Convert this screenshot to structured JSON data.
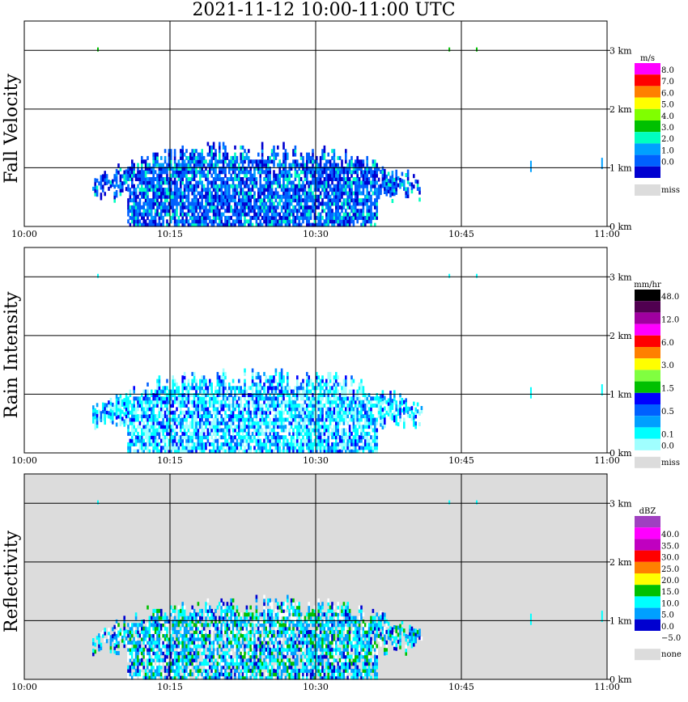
{
  "title": "2021-11-12   10:00-11:00 UTC",
  "x_ticks": [
    "10:00",
    "10:15",
    "10:30",
    "10:45",
    "11:00"
  ],
  "y_ticks": [
    "0 km",
    "1 km",
    "2 km",
    "3 km"
  ],
  "colors": {
    "missing": "#dcdcdc",
    "grid": "#000000"
  },
  "chart_data": [
    {
      "type": "heatmap",
      "name": "fall_velocity",
      "ylabel": "Fall Velocity",
      "x_range_utc": [
        "10:00",
        "11:00"
      ],
      "ylim_km": [
        0,
        3.5
      ],
      "background": "#ffffff",
      "colorbar": {
        "unit": "m/s",
        "missing_label": "miss",
        "levels": [
          {
            "label": "8.0",
            "color": "#ff00ff"
          },
          {
            "label": "7.0",
            "color": "#ff0000"
          },
          {
            "label": "6.0",
            "color": "#ff8000"
          },
          {
            "label": "5.0",
            "color": "#ffff00"
          },
          {
            "label": "4.0",
            "color": "#80ff00"
          },
          {
            "label": "3.0",
            "color": "#00c000"
          },
          {
            "label": "2.0",
            "color": "#00ffc0"
          },
          {
            "label": "1.0",
            "color": "#00a0ff"
          },
          {
            "label": "0.0",
            "color": "#0060ff"
          },
          {
            "label": "",
            "color": "#0000d0"
          }
        ]
      },
      "echo_extent": {
        "start": "10:07",
        "end": "10:41",
        "max_height_km": 1.35,
        "dominant_class": "1.0-2.0 m/s"
      }
    },
    {
      "type": "heatmap",
      "name": "rain_intensity",
      "ylabel": "Rain Intensity",
      "x_range_utc": [
        "10:00",
        "11:00"
      ],
      "ylim_km": [
        0,
        3.5
      ],
      "background": "#ffffff",
      "colorbar": {
        "unit": "mm/hr",
        "missing_label": "miss",
        "levels": [
          {
            "label": "48.0",
            "color": "#000000"
          },
          {
            "label": "",
            "color": "#500050"
          },
          {
            "label": "12.0",
            "color": "#a000a0"
          },
          {
            "label": "",
            "color": "#ff00ff"
          },
          {
            "label": "6.0",
            "color": "#ff0000"
          },
          {
            "label": "",
            "color": "#ff8000"
          },
          {
            "label": "3.0",
            "color": "#ffff00"
          },
          {
            "label": "",
            "color": "#80ff40"
          },
          {
            "label": "1.5",
            "color": "#00c000"
          },
          {
            "label": "",
            "color": "#0000ff"
          },
          {
            "label": "0.5",
            "color": "#0060ff"
          },
          {
            "label": "",
            "color": "#00a0ff"
          },
          {
            "label": "0.1",
            "color": "#00ffff"
          },
          {
            "label": "0.0",
            "color": "#a0ffff"
          }
        ]
      },
      "echo_extent": {
        "start": "10:07",
        "end": "10:41",
        "max_height_km": 1.35,
        "dominant_class": "0.1-0.5 mm/hr"
      }
    },
    {
      "type": "heatmap",
      "name": "reflectivity",
      "ylabel": "Reflectivity",
      "x_range_utc": [
        "10:00",
        "11:00"
      ],
      "ylim_km": [
        0,
        3.5
      ],
      "background": "#dcdcdc",
      "colorbar": {
        "unit": "dBZ",
        "missing_label": "none",
        "levels": [
          {
            "label": "",
            "color": "#a040c0"
          },
          {
            "label": "40.0",
            "color": "#ff00ff"
          },
          {
            "label": "35.0",
            "color": "#c000c0"
          },
          {
            "label": "30.0",
            "color": "#ff0000"
          },
          {
            "label": "25.0",
            "color": "#ff8000"
          },
          {
            "label": "20.0",
            "color": "#ffff00"
          },
          {
            "label": "15.0",
            "color": "#00c000"
          },
          {
            "label": "10.0",
            "color": "#00ffff"
          },
          {
            "label": "5.0",
            "color": "#00a0ff"
          },
          {
            "label": "0.0",
            "color": "#0000d0"
          },
          {
            "label": "−5.0",
            "color": "#ffffff"
          }
        ]
      },
      "echo_extent": {
        "start": "10:07",
        "end": "10:41",
        "max_height_km": 1.35,
        "dominant_class": "5.0-10.0 dBZ"
      }
    }
  ]
}
